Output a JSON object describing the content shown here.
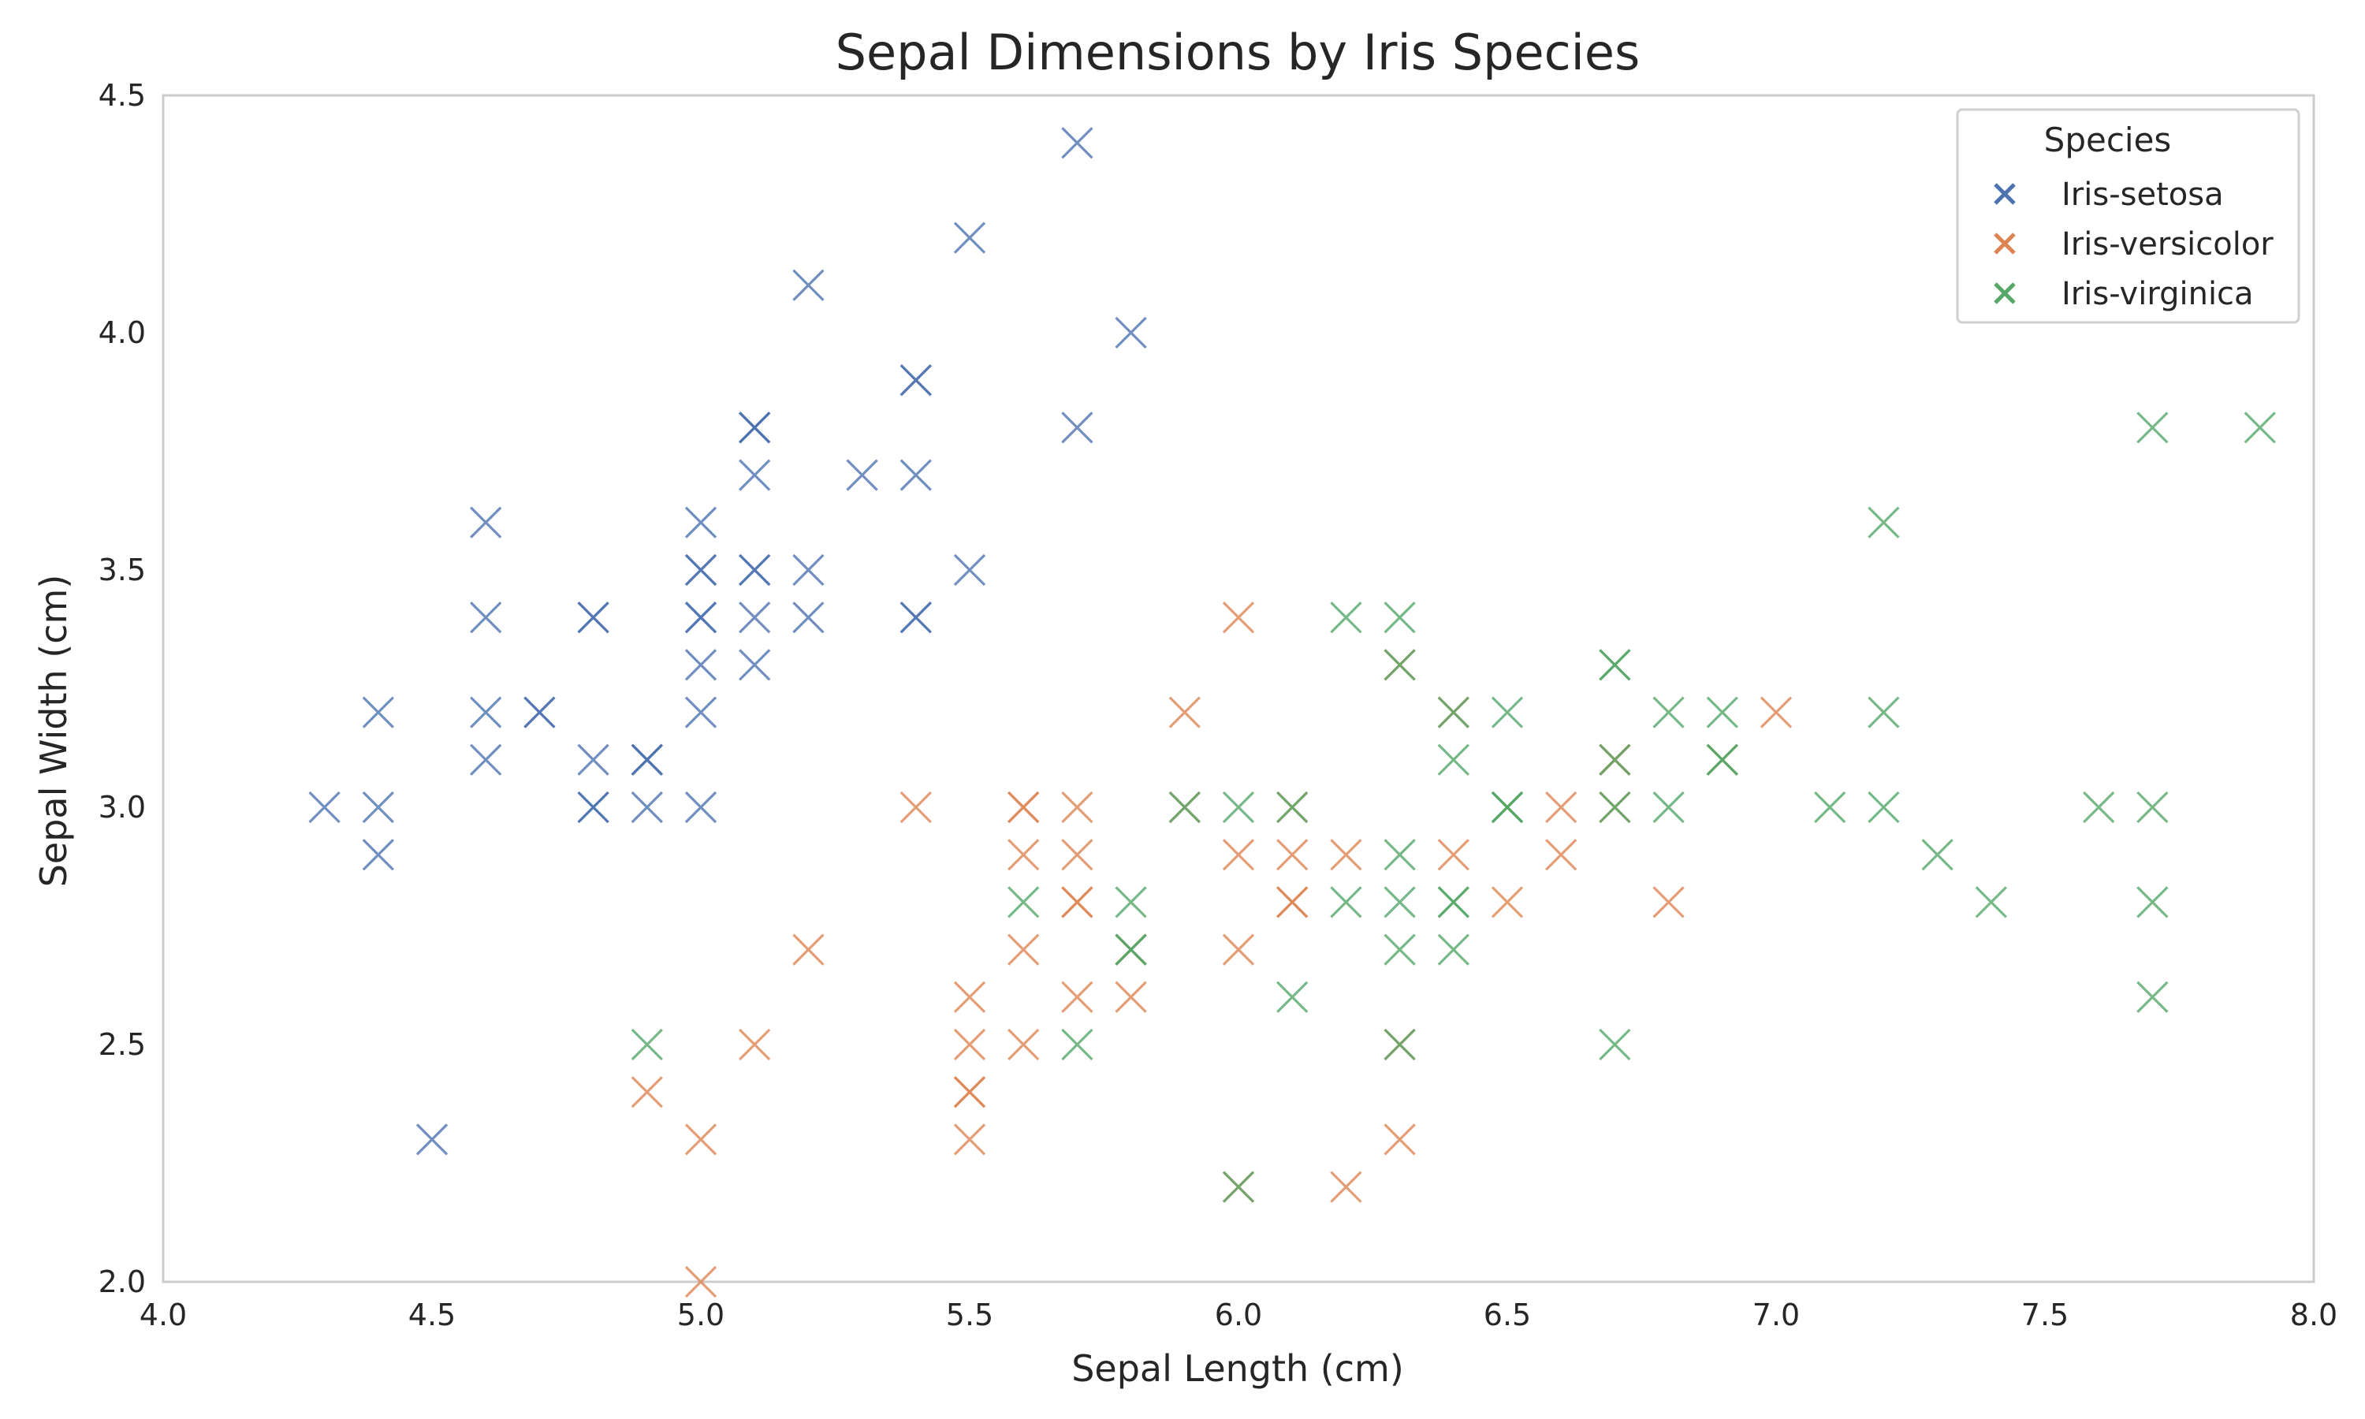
{
  "chart_data": {
    "type": "scatter",
    "title": "Sepal Dimensions by Iris Species",
    "xlabel": "Sepal Length (cm)",
    "ylabel": "Sepal Width (cm)",
    "xlim": [
      4.0,
      8.0
    ],
    "ylim": [
      2.0,
      4.5
    ],
    "x_ticks": [
      "4.0",
      "4.5",
      "5.0",
      "5.5",
      "6.0",
      "6.5",
      "7.0",
      "7.5",
      "8.0"
    ],
    "y_ticks": [
      "2.0",
      "2.5",
      "3.0",
      "3.5",
      "4.0",
      "4.5"
    ],
    "grid": false,
    "marker": "x",
    "legend": {
      "title": "Species",
      "placement": "top-right"
    },
    "series": [
      {
        "name": "Iris-setosa",
        "color": "#4c72b0",
        "points": [
          [
            5.1,
            3.5
          ],
          [
            4.9,
            3.0
          ],
          [
            4.7,
            3.2
          ],
          [
            4.6,
            3.1
          ],
          [
            5.0,
            3.6
          ],
          [
            5.4,
            3.9
          ],
          [
            4.6,
            3.4
          ],
          [
            5.0,
            3.4
          ],
          [
            4.4,
            2.9
          ],
          [
            4.9,
            3.1
          ],
          [
            5.4,
            3.7
          ],
          [
            4.8,
            3.4
          ],
          [
            4.8,
            3.0
          ],
          [
            4.3,
            3.0
          ],
          [
            5.8,
            4.0
          ],
          [
            5.7,
            4.4
          ],
          [
            5.4,
            3.9
          ],
          [
            5.1,
            3.5
          ],
          [
            5.7,
            3.8
          ],
          [
            5.1,
            3.8
          ],
          [
            5.4,
            3.4
          ],
          [
            5.1,
            3.7
          ],
          [
            4.6,
            3.6
          ],
          [
            5.1,
            3.3
          ],
          [
            4.8,
            3.4
          ],
          [
            5.0,
            3.0
          ],
          [
            5.0,
            3.4
          ],
          [
            5.2,
            3.5
          ],
          [
            5.2,
            3.4
          ],
          [
            4.7,
            3.2
          ],
          [
            4.8,
            3.1
          ],
          [
            5.4,
            3.4
          ],
          [
            5.2,
            4.1
          ],
          [
            5.5,
            4.2
          ],
          [
            4.9,
            3.1
          ],
          [
            5.0,
            3.2
          ],
          [
            5.5,
            3.5
          ],
          [
            4.9,
            3.1
          ],
          [
            4.4,
            3.0
          ],
          [
            5.1,
            3.4
          ],
          [
            5.0,
            3.5
          ],
          [
            4.5,
            2.3
          ],
          [
            4.4,
            3.2
          ],
          [
            5.0,
            3.5
          ],
          [
            5.1,
            3.8
          ],
          [
            4.8,
            3.0
          ],
          [
            5.1,
            3.8
          ],
          [
            4.6,
            3.2
          ],
          [
            5.3,
            3.7
          ],
          [
            5.0,
            3.3
          ]
        ]
      },
      {
        "name": "Iris-versicolor",
        "color": "#dd8452",
        "points": [
          [
            7.0,
            3.2
          ],
          [
            6.4,
            3.2
          ],
          [
            6.9,
            3.1
          ],
          [
            5.5,
            2.3
          ],
          [
            6.5,
            2.8
          ],
          [
            5.7,
            2.8
          ],
          [
            6.3,
            3.3
          ],
          [
            4.9,
            2.4
          ],
          [
            6.6,
            2.9
          ],
          [
            5.2,
            2.7
          ],
          [
            5.0,
            2.0
          ],
          [
            5.9,
            3.0
          ],
          [
            6.0,
            2.2
          ],
          [
            6.1,
            2.9
          ],
          [
            5.6,
            2.9
          ],
          [
            6.7,
            3.1
          ],
          [
            5.6,
            3.0
          ],
          [
            5.8,
            2.7
          ],
          [
            6.2,
            2.2
          ],
          [
            5.6,
            2.5
          ],
          [
            5.9,
            3.2
          ],
          [
            6.1,
            2.8
          ],
          [
            6.3,
            2.5
          ],
          [
            6.1,
            2.8
          ],
          [
            6.4,
            2.9
          ],
          [
            6.6,
            3.0
          ],
          [
            6.8,
            2.8
          ],
          [
            6.7,
            3.0
          ],
          [
            6.0,
            2.9
          ],
          [
            5.7,
            2.6
          ],
          [
            5.5,
            2.4
          ],
          [
            5.5,
            2.4
          ],
          [
            5.8,
            2.7
          ],
          [
            6.0,
            2.7
          ],
          [
            5.4,
            3.0
          ],
          [
            6.0,
            3.4
          ],
          [
            6.7,
            3.1
          ],
          [
            6.3,
            2.3
          ],
          [
            5.6,
            3.0
          ],
          [
            5.5,
            2.5
          ],
          [
            5.5,
            2.6
          ],
          [
            6.1,
            3.0
          ],
          [
            5.8,
            2.6
          ],
          [
            5.0,
            2.3
          ],
          [
            5.6,
            2.7
          ],
          [
            5.7,
            3.0
          ],
          [
            5.7,
            2.9
          ],
          [
            6.2,
            2.9
          ],
          [
            5.1,
            2.5
          ],
          [
            5.7,
            2.8
          ]
        ]
      },
      {
        "name": "Iris-virginica",
        "color": "#55a868",
        "points": [
          [
            6.3,
            3.3
          ],
          [
            5.8,
            2.7
          ],
          [
            7.1,
            3.0
          ],
          [
            6.3,
            2.9
          ],
          [
            6.5,
            3.0
          ],
          [
            7.6,
            3.0
          ],
          [
            4.9,
            2.5
          ],
          [
            7.3,
            2.9
          ],
          [
            6.7,
            2.5
          ],
          [
            7.2,
            3.6
          ],
          [
            6.5,
            3.2
          ],
          [
            6.4,
            2.7
          ],
          [
            6.8,
            3.0
          ],
          [
            5.7,
            2.5
          ],
          [
            5.8,
            2.8
          ],
          [
            6.4,
            3.2
          ],
          [
            6.5,
            3.0
          ],
          [
            7.7,
            3.8
          ],
          [
            7.7,
            2.6
          ],
          [
            6.0,
            2.2
          ],
          [
            6.9,
            3.2
          ],
          [
            5.6,
            2.8
          ],
          [
            7.7,
            2.8
          ],
          [
            6.3,
            2.7
          ],
          [
            6.7,
            3.3
          ],
          [
            7.2,
            3.2
          ],
          [
            6.2,
            2.8
          ],
          [
            6.1,
            3.0
          ],
          [
            6.4,
            2.8
          ],
          [
            7.2,
            3.0
          ],
          [
            7.4,
            2.8
          ],
          [
            7.9,
            3.8
          ],
          [
            6.4,
            2.8
          ],
          [
            6.3,
            2.8
          ],
          [
            6.1,
            2.6
          ],
          [
            7.7,
            3.0
          ],
          [
            6.3,
            3.4
          ],
          [
            6.4,
            3.1
          ],
          [
            6.0,
            3.0
          ],
          [
            6.9,
            3.1
          ],
          [
            6.7,
            3.1
          ],
          [
            6.9,
            3.1
          ],
          [
            5.8,
            2.7
          ],
          [
            6.8,
            3.2
          ],
          [
            6.7,
            3.3
          ],
          [
            6.7,
            3.0
          ],
          [
            6.3,
            2.5
          ],
          [
            6.5,
            3.0
          ],
          [
            6.2,
            3.4
          ],
          [
            5.9,
            3.0
          ]
        ]
      }
    ]
  }
}
